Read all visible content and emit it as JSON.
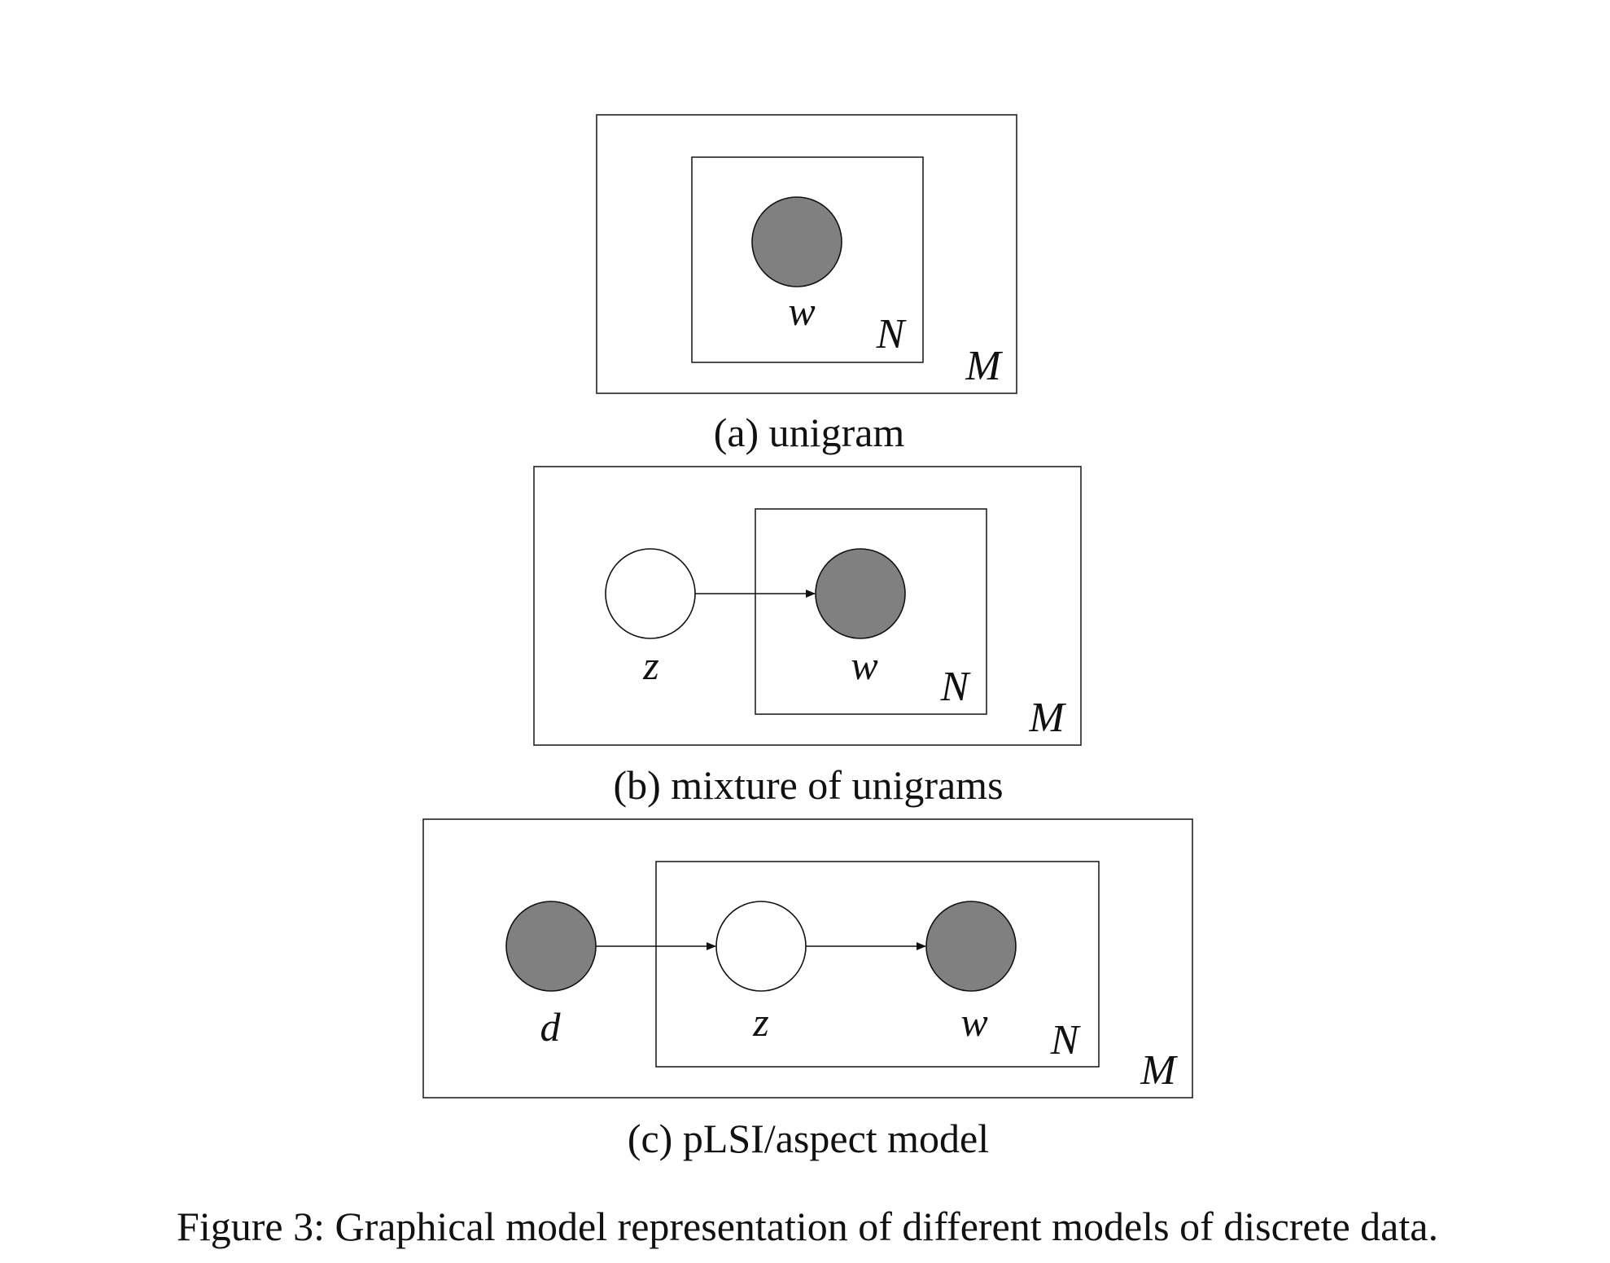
{
  "colors": {
    "observed_fill": "#808080",
    "latent_fill": "#ffffff",
    "stroke": "#111111"
  },
  "panel_a": {
    "caption": "(a) unigram",
    "nodes": {
      "w": {
        "label": "w",
        "observed": true
      }
    },
    "plates": {
      "inner": "N",
      "outer": "M"
    }
  },
  "panel_b": {
    "caption": "(b) mixture of unigrams",
    "nodes": {
      "z": {
        "label": "z",
        "observed": false
      },
      "w": {
        "label": "w",
        "observed": true
      }
    },
    "edges": [
      [
        "z",
        "w"
      ]
    ],
    "plates": {
      "inner": "N",
      "outer": "M"
    }
  },
  "panel_c": {
    "caption": "(c) pLSI/aspect model",
    "nodes": {
      "d": {
        "label": "d",
        "observed": true
      },
      "z": {
        "label": "z",
        "observed": false
      },
      "w": {
        "label": "w",
        "observed": true
      }
    },
    "edges": [
      [
        "d",
        "z"
      ],
      [
        "z",
        "w"
      ]
    ],
    "plates": {
      "inner": "N",
      "outer": "M"
    }
  },
  "figure_caption": "Figure 3: Graphical model representation of different models of discrete data."
}
